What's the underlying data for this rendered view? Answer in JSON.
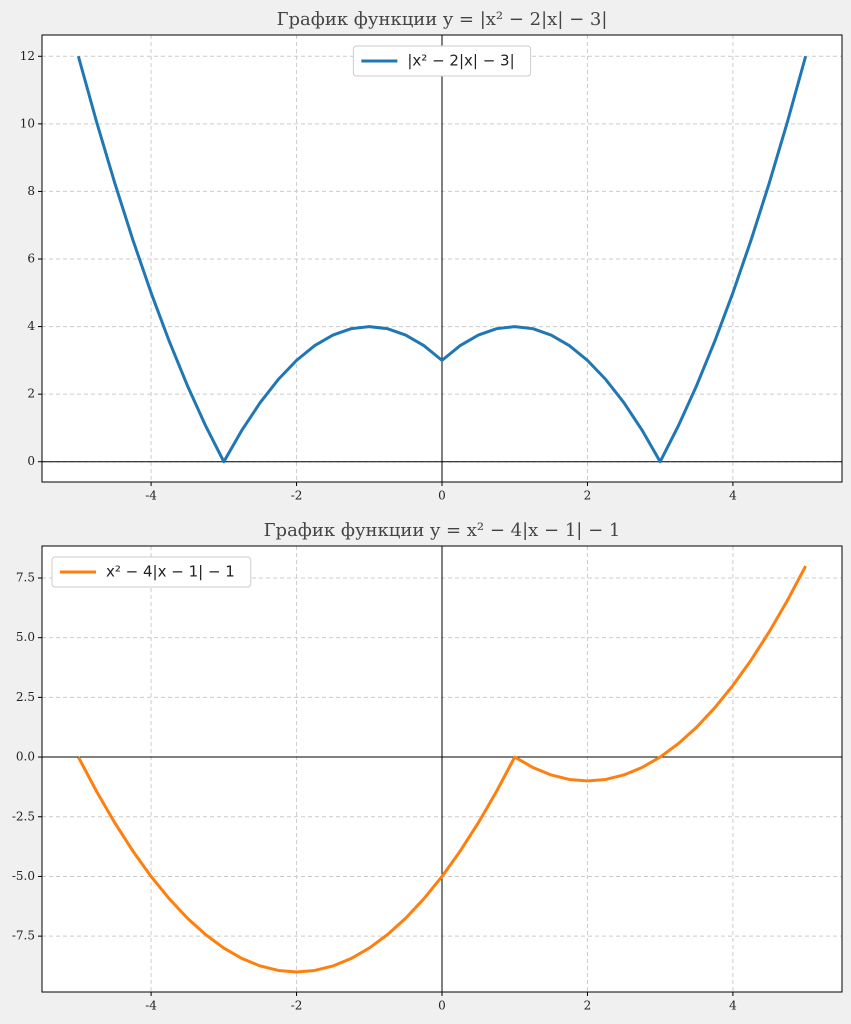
{
  "chart_data": [
    {
      "type": "line",
      "title": "График функции y = |x² − 2|x| − 3|",
      "x": [
        -5,
        -4.75,
        -4.5,
        -4.25,
        -4,
        -3.75,
        -3.5,
        -3.25,
        -3,
        -2.75,
        -2.5,
        -2.25,
        -2,
        -1.75,
        -1.5,
        -1.25,
        -1,
        -0.75,
        -0.5,
        -0.25,
        0,
        0.25,
        0.5,
        0.75,
        1,
        1.25,
        1.5,
        1.75,
        2,
        2.25,
        2.5,
        2.75,
        3,
        3.25,
        3.5,
        3.75,
        4,
        4.25,
        4.5,
        4.75,
        5
      ],
      "series": [
        {
          "name": "|x² − 2|x| − 3|",
          "color": "#1f77b4",
          "values": [
            12,
            10.0625,
            8.25,
            6.5625,
            5,
            3.5625,
            2.25,
            1.0625,
            0,
            0.9375,
            1.75,
            2.4375,
            3,
            3.4375,
            3.75,
            3.9375,
            4,
            3.9375,
            3.75,
            3.4375,
            3,
            3.4375,
            3.75,
            3.9375,
            4,
            3.9375,
            3.75,
            3.4375,
            3,
            2.4375,
            1.75,
            0.9375,
            0,
            1.0625,
            2.25,
            3.5625,
            5,
            6.5625,
            8.25,
            10.0625,
            12
          ]
        }
      ],
      "xlim": [
        -5.5,
        5.5
      ],
      "xticks": [
        -4,
        -2,
        0,
        2,
        4
      ],
      "ylim": [
        -0.6,
        12.63
      ],
      "yticks": [
        0,
        2,
        4,
        6,
        8,
        10,
        12
      ],
      "grid": true,
      "legend": "upper center"
    },
    {
      "type": "line",
      "title": "График функции y = x² − 4|x − 1| − 1",
      "x": [
        -5,
        -4.75,
        -4.5,
        -4.25,
        -4,
        -3.75,
        -3.5,
        -3.25,
        -3,
        -2.75,
        -2.5,
        -2.25,
        -2,
        -1.75,
        -1.5,
        -1.25,
        -1,
        -0.75,
        -0.5,
        -0.25,
        0,
        0.25,
        0.5,
        0.75,
        1,
        1.25,
        1.5,
        1.75,
        2,
        2.25,
        2.5,
        2.75,
        3,
        3.25,
        3.5,
        3.75,
        4,
        4.25,
        4.5,
        4.75,
        5
      ],
      "series": [
        {
          "name": "x² − 4|x − 1| − 1",
          "color": "#ff7f0e",
          "values": [
            0,
            -1.4375,
            -2.75,
            -3.9375,
            -5,
            -5.9375,
            -6.75,
            -7.4375,
            -8,
            -8.4375,
            -8.75,
            -8.9375,
            -9,
            -8.9375,
            -8.75,
            -8.4375,
            -8,
            -7.4375,
            -6.75,
            -5.9375,
            -5,
            -3.9375,
            -2.75,
            -1.4375,
            0,
            -0.4375,
            -0.75,
            -0.9375,
            -1,
            -0.9375,
            -0.75,
            -0.4375,
            0,
            0.5625,
            1.25,
            2.0625,
            3,
            4.0625,
            5.25,
            6.5625,
            8
          ]
        }
      ],
      "xlim": [
        -5.5,
        5.5
      ],
      "xticks": [
        -4,
        -2,
        0,
        2,
        4
      ],
      "ylim": [
        -9.84,
        8.84
      ],
      "yticks": [
        -7.5,
        {
          "value": -5,
          "label": "-5.0"
        },
        -2.5,
        {
          "value": 0,
          "label": "0.0"
        },
        2.5,
        {
          "value": 5,
          "label": "5.0"
        },
        7.5
      ],
      "grid": true,
      "legend": "upper left"
    }
  ]
}
